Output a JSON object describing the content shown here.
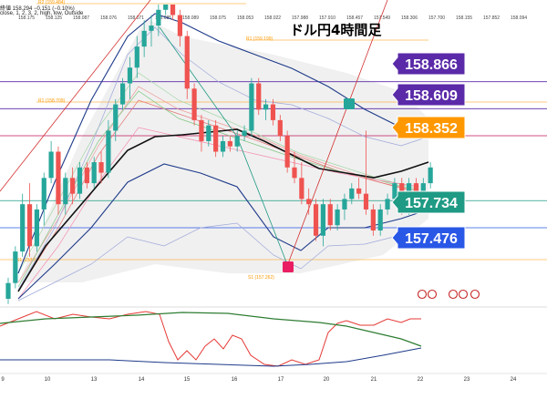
{
  "header": {
    "line1": "終値 158.294 −0.151 (−0.10%)",
    "line2": "close, 1, 2, 3, 2, high, low, Outside"
  },
  "chart_title": "ドル円4時間足",
  "top_values": [
    "158.175",
    "158.125",
    "158.087",
    "158.076",
    "158.071",
    "158.085",
    "158.089",
    "158.075",
    "158.053",
    "158.022",
    "157.988",
    "157.910",
    "158.457",
    "157.549",
    "158.306",
    "157.700",
    "158.155",
    "157.852",
    "158.094"
  ],
  "pivot_labels": {
    "r2": "R2 (159.484)",
    "r1_upper": "R1 (159.199)",
    "r1": "R1 (158.709)",
    "s1": "S1 (157.262)",
    "s1_left": "S1 (157.5)"
  },
  "price_tags": [
    {
      "value": "158.866",
      "color": "#5a2aa8"
    },
    {
      "value": "158.609",
      "color": "#5a2aa8"
    },
    {
      "value": "158.352",
      "color": "#ff9800"
    },
    {
      "value": "157.734",
      "color": "#1f9a84"
    },
    {
      "value": "157.476",
      "color": "#2957e6"
    }
  ],
  "x_axis_labels": [
    "9",
    "10",
    "13",
    "14",
    "15",
    "16",
    "17",
    "20",
    "21",
    "22",
    "23",
    "24"
  ],
  "colors": {
    "up": "#26a69a",
    "down": "#ef5350",
    "purple": "#5a2aa8",
    "orange": "#ff9800",
    "teal": "#1f9a84",
    "blue": "#2957e6"
  },
  "chart_data": {
    "type": "candlestick",
    "title": "ドル円4時間足",
    "x_labels": [
      "9",
      "10",
      "13",
      "14",
      "15",
      "16",
      "17",
      "20",
      "21",
      "22",
      "23",
      "24"
    ],
    "horizontal_levels": [
      158.866,
      158.609,
      158.352,
      157.734,
      157.476
    ],
    "pivots": {
      "R2": 159.484,
      "R1_upper": 159.199,
      "R1": 158.709,
      "S1": 157.262
    },
    "candles": [
      [
        156.8,
        157.0,
        156.75,
        156.95
      ],
      [
        156.95,
        157.3,
        156.9,
        157.25
      ],
      [
        157.25,
        157.8,
        157.2,
        157.7
      ],
      [
        157.7,
        157.9,
        157.2,
        157.3
      ],
      [
        157.3,
        157.7,
        157.25,
        157.65
      ],
      [
        157.65,
        158.0,
        157.5,
        157.95
      ],
      [
        157.95,
        158.3,
        157.9,
        158.2
      ],
      [
        158.2,
        158.25,
        157.6,
        157.7
      ],
      [
        157.7,
        158.0,
        157.6,
        157.95
      ],
      [
        157.95,
        158.05,
        157.7,
        157.8
      ],
      [
        157.8,
        158.1,
        157.75,
        158.05
      ],
      [
        158.05,
        158.1,
        157.85,
        157.9
      ],
      [
        157.9,
        158.15,
        157.85,
        158.1
      ],
      [
        158.1,
        158.2,
        157.9,
        158.0
      ],
      [
        158.0,
        158.5,
        157.95,
        158.4
      ],
      [
        158.4,
        158.7,
        158.3,
        158.65
      ],
      [
        158.65,
        158.9,
        158.6,
        158.85
      ],
      [
        158.85,
        159.1,
        158.7,
        159.0
      ],
      [
        159.0,
        159.3,
        158.9,
        159.2
      ],
      [
        159.2,
        159.45,
        159.1,
        159.35
      ],
      [
        159.35,
        159.5,
        159.2,
        159.4
      ],
      [
        159.4,
        159.6,
        159.3,
        159.55
      ],
      [
        159.55,
        159.6,
        159.5,
        159.6
      ],
      [
        159.6,
        159.6,
        159.45,
        159.5
      ],
      [
        159.5,
        159.55,
        159.2,
        159.3
      ],
      [
        159.3,
        159.35,
        158.7,
        158.8
      ],
      [
        158.8,
        158.85,
        158.45,
        158.5
      ],
      [
        158.5,
        158.55,
        158.2,
        158.3
      ],
      [
        158.3,
        158.5,
        158.25,
        158.45
      ],
      [
        158.45,
        158.5,
        158.15,
        158.2
      ],
      [
        158.2,
        158.35,
        158.15,
        158.3
      ],
      [
        158.3,
        158.35,
        158.2,
        158.25
      ],
      [
        158.25,
        158.4,
        158.2,
        158.35
      ],
      [
        158.35,
        158.45,
        158.3,
        158.4
      ],
      [
        158.4,
        158.9,
        158.35,
        158.85
      ],
      [
        158.85,
        158.9,
        158.55,
        158.6
      ],
      [
        158.6,
        158.7,
        158.5,
        158.65
      ],
      [
        158.65,
        158.7,
        158.45,
        158.5
      ],
      [
        158.5,
        158.55,
        158.3,
        158.35
      ],
      [
        158.35,
        158.4,
        158.0,
        158.05
      ],
      [
        158.05,
        158.2,
        157.9,
        157.95
      ],
      [
        157.95,
        158.1,
        157.7,
        157.75
      ],
      [
        157.75,
        157.85,
        157.6,
        157.7
      ],
      [
        157.7,
        157.75,
        157.35,
        157.4
      ],
      [
        157.4,
        157.75,
        157.3,
        157.7
      ],
      [
        157.7,
        157.75,
        157.45,
        157.5
      ],
      [
        157.5,
        157.7,
        157.45,
        157.65
      ],
      [
        157.65,
        157.8,
        157.55,
        157.75
      ],
      [
        157.75,
        157.9,
        157.7,
        157.85
      ],
      [
        157.85,
        157.95,
        157.75,
        157.8
      ],
      [
        157.8,
        158.4,
        157.6,
        157.65
      ],
      [
        157.65,
        157.7,
        157.4,
        157.45
      ],
      [
        157.45,
        157.7,
        157.4,
        157.65
      ],
      [
        157.65,
        157.8,
        157.6,
        157.75
      ],
      [
        157.75,
        157.95,
        157.7,
        157.9
      ],
      [
        157.9,
        157.95,
        157.6,
        157.65
      ],
      [
        157.65,
        157.95,
        157.6,
        157.9
      ],
      [
        157.9,
        157.95,
        157.7,
        157.75
      ],
      [
        157.75,
        157.95,
        157.7,
        157.9
      ],
      [
        157.9,
        158.1,
        157.85,
        158.05
      ]
    ],
    "oscillator": {
      "type": "stochastic",
      "lines": [
        "red",
        "green",
        "blue"
      ]
    }
  }
}
